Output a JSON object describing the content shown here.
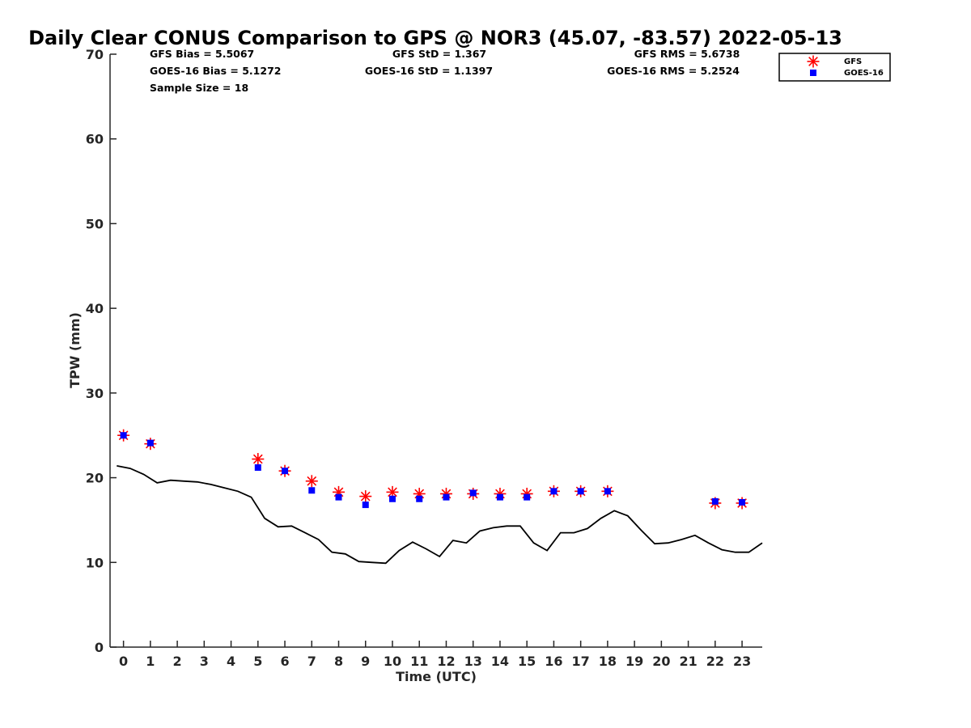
{
  "chart_data": {
    "type": "scatter",
    "title": "Daily Clear CONUS Comparison to GPS @ NOR3 (45.07, -83.57) 2022-05-13",
    "xlabel": "Time (UTC)",
    "ylabel": "TPW (mm)",
    "xlim": [
      -0.5,
      23.75
    ],
    "ylim": [
      0,
      70
    ],
    "xticks": [
      0,
      1,
      2,
      3,
      4,
      5,
      6,
      7,
      8,
      9,
      10,
      11,
      12,
      13,
      14,
      15,
      16,
      17,
      18,
      19,
      20,
      21,
      22,
      23
    ],
    "yticks": [
      0,
      10,
      20,
      30,
      40,
      50,
      60,
      70
    ],
    "grid": false,
    "legend_position": "top-right",
    "stats": {
      "gfs_bias": "GFS Bias = 5.5067",
      "goes_bias": "GOES-16 Bias = 5.1272",
      "sample_size": "Sample Size = 18",
      "gfs_std": "GFS StD = 1.367",
      "goes_std": "GOES-16 StD = 1.1397",
      "gfs_rms": "GFS RMS = 5.6738",
      "goes_rms": "GOES-16 RMS = 5.2524"
    },
    "series": [
      {
        "name": "GFS",
        "kind": "scatter",
        "marker": "asterisk",
        "color": "#ff0000",
        "x": [
          0,
          1,
          5,
          6,
          7,
          8,
          9,
          10,
          11,
          12,
          13,
          14,
          15,
          16,
          17,
          18,
          22,
          23
        ],
        "y": [
          25.0,
          24.0,
          22.2,
          20.8,
          19.6,
          18.3,
          17.8,
          18.3,
          18.1,
          18.1,
          18.1,
          18.1,
          18.1,
          18.4,
          18.4,
          18.4,
          17.0,
          17.0
        ]
      },
      {
        "name": "GOES-16",
        "kind": "scatter",
        "marker": "square",
        "color": "#0000ff",
        "x": [
          0,
          1,
          5,
          6,
          7,
          8,
          9,
          10,
          11,
          12,
          13,
          14,
          15,
          16,
          17,
          18,
          22,
          23
        ],
        "y": [
          25.0,
          24.1,
          21.2,
          20.8,
          18.5,
          17.7,
          16.8,
          17.5,
          17.5,
          17.7,
          18.2,
          17.7,
          17.7,
          18.4,
          18.4,
          18.4,
          17.2,
          17.1
        ]
      },
      {
        "kind": "line",
        "color": "#000000",
        "x": [
          -0.25,
          0.25,
          0.75,
          1.25,
          1.75,
          2.25,
          2.75,
          3.25,
          3.75,
          4.25,
          4.75,
          5.25,
          5.75,
          6.25,
          6.75,
          7.25,
          7.75,
          8.25,
          8.75,
          9.25,
          9.75,
          10.25,
          10.75,
          11.25,
          11.75,
          12.25,
          12.75,
          13.25,
          13.75,
          14.25,
          14.75,
          15.25,
          15.75,
          16.25,
          16.75,
          17.25,
          17.75,
          18.25,
          18.75,
          19.25,
          19.75,
          20.25,
          20.75,
          21.25,
          21.75,
          22.25,
          22.75,
          23.25,
          23.75
        ],
        "y": [
          21.4,
          21.1,
          20.4,
          19.4,
          19.7,
          19.6,
          19.5,
          19.2,
          18.8,
          18.4,
          17.7,
          15.2,
          14.2,
          14.3,
          13.5,
          12.7,
          11.2,
          11.0,
          10.1,
          10.0,
          9.9,
          11.4,
          12.4,
          11.6,
          10.7,
          12.6,
          12.3,
          13.7,
          14.1,
          14.3,
          14.3,
          12.3,
          11.4,
          13.5,
          13.5,
          14.0,
          15.2,
          16.1,
          15.5,
          13.8,
          12.2,
          12.3,
          12.7,
          13.2,
          12.3,
          11.5,
          11.2,
          11.2,
          12.3
        ]
      }
    ]
  }
}
